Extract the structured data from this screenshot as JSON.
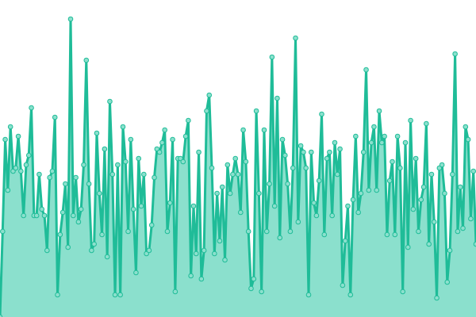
{
  "chart_data": {
    "type": "area",
    "title": "",
    "xlabel": "",
    "ylabel": "",
    "ylim": [
      0,
      100
    ],
    "grid": false,
    "legend": "none",
    "markers": true,
    "colors": {
      "line": "#1fbc98",
      "fill": "#8be0cd",
      "marker_fill": "#8be0cd",
      "marker_stroke": "#1fbc98"
    },
    "values": [
      0,
      27,
      56,
      40,
      60,
      46,
      47,
      57,
      46,
      32,
      48,
      51,
      66,
      32,
      32,
      45,
      34,
      32,
      21,
      44,
      46,
      63,
      7,
      26,
      33,
      42,
      22,
      94,
      32,
      44,
      30,
      34,
      48,
      81,
      42,
      21,
      23,
      58,
      39,
      26,
      53,
      19,
      68,
      45,
      7,
      48,
      7,
      60,
      49,
      27,
      56,
      34,
      14,
      50,
      35,
      45,
      20,
      21,
      29,
      44,
      53,
      52,
      55,
      59,
      27,
      36,
      56,
      8,
      50,
      50,
      49,
      57,
      62,
      13,
      35,
      20,
      52,
      12,
      21,
      65,
      70,
      47,
      20,
      39,
      24,
      41,
      18,
      48,
      39,
      45,
      50,
      45,
      33,
      59,
      49,
      27,
      9,
      12,
      65,
      39,
      8,
      59,
      27,
      42,
      82,
      35,
      69,
      25,
      56,
      51,
      42,
      27,
      47,
      88,
      30,
      54,
      52,
      47,
      7,
      52,
      36,
      32,
      43,
      64,
      26,
      50,
      52,
      32,
      55,
      45,
      53,
      10,
      24,
      35,
      7,
      37,
      57,
      33,
      39,
      52,
      78,
      40,
      55,
      60,
      40,
      65,
      55,
      57,
      26,
      43,
      49,
      26,
      57,
      47,
      8,
      55,
      22,
      62,
      34,
      50,
      27,
      37,
      41,
      61,
      23,
      45,
      30,
      6,
      47,
      48,
      39,
      11,
      21,
      45,
      83,
      27,
      41,
      28,
      60,
      56,
      31,
      46,
      23
    ]
  }
}
